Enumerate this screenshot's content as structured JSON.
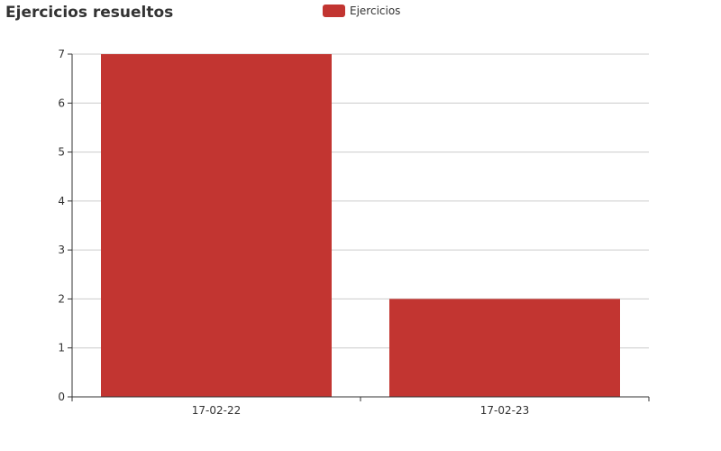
{
  "chart_data": {
    "type": "bar",
    "title": "Ejercicios resueltos",
    "categories": [
      "17-02-22",
      "17-02-23"
    ],
    "series": [
      {
        "name": "Ejercicios",
        "values": [
          7,
          2
        ],
        "color": "#c23531"
      }
    ],
    "ylim": [
      0,
      7
    ],
    "yticks": [
      0,
      1,
      2,
      3,
      4,
      5,
      6,
      7
    ],
    "grid": true,
    "legend_position": "top-center"
  }
}
